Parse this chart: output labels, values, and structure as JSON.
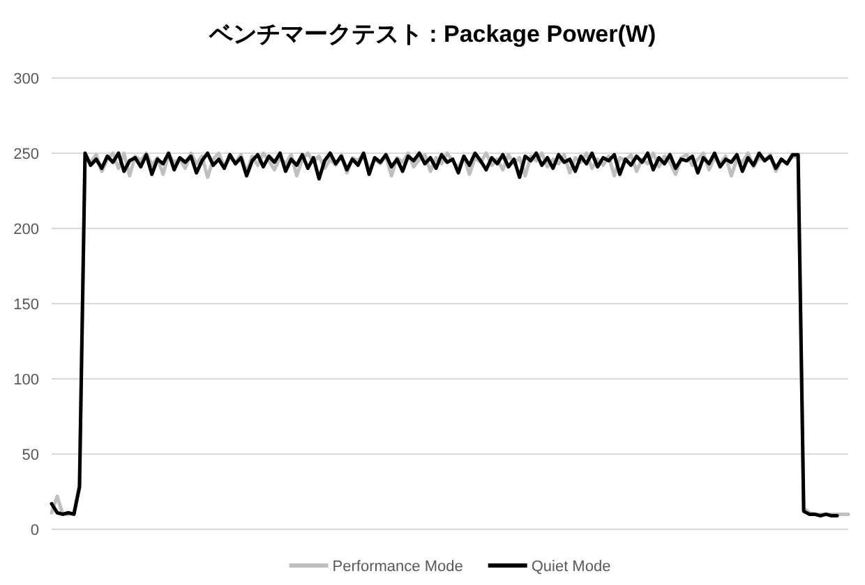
{
  "chart_data": {
    "type": "line",
    "title": "ベンチマークテスト : Package Power(W)",
    "categories": [
      null,
      null,
      null,
      null,
      null,
      null,
      null,
      null,
      null,
      null,
      null,
      null,
      null,
      null,
      null,
      null,
      null,
      null,
      null,
      null,
      null,
      null,
      null,
      null,
      null,
      null,
      null,
      null,
      null,
      null,
      null,
      null,
      null,
      null,
      null,
      null,
      null,
      null,
      null,
      null,
      null,
      null,
      null,
      null,
      null,
      null,
      null,
      null,
      null,
      null,
      null,
      null,
      null,
      null,
      null,
      null,
      null,
      null,
      null,
      null,
      null,
      null,
      null,
      null,
      null,
      null,
      null,
      null,
      null,
      null,
      null,
      null,
      null,
      null,
      null,
      null,
      null,
      null,
      null,
      null,
      null,
      null,
      null,
      null,
      null,
      null,
      null,
      null,
      null,
      null,
      null,
      null,
      null,
      null,
      null,
      null,
      null,
      null,
      null,
      null,
      null,
      null,
      null,
      null,
      null,
      null,
      null,
      null,
      null,
      null,
      null,
      null,
      null,
      null,
      null,
      null,
      null,
      null,
      null,
      null,
      null,
      null,
      null,
      null,
      null,
      null,
      null,
      null,
      null,
      null,
      null,
      null,
      null,
      null,
      null,
      null,
      null,
      null,
      null,
      null,
      null,
      null,
      null,
      null
    ],
    "series": [
      {
        "name": "Performance Mode",
        "color": "#bfbfbf",
        "values": [
          11,
          22,
          10,
          10,
          11,
          30,
          247,
          244,
          249,
          238,
          246,
          250,
          240,
          250,
          235,
          248,
          245,
          250,
          242,
          247,
          236,
          249,
          244,
          246,
          240,
          250,
          243,
          248,
          234,
          246,
          250,
          241,
          247,
          244,
          249,
          237,
          248,
          242,
          250,
          245,
          239,
          247,
          243,
          249,
          235,
          246,
          250,
          244,
          248,
          240,
          246,
          242,
          249,
          237,
          247,
          245,
          250,
          239,
          246,
          243,
          248,
          235,
          247,
          244,
          250,
          241,
          246,
          249,
          238,
          247,
          243,
          250,
          245,
          240,
          248,
          236,
          247,
          244,
          250,
          242,
          246,
          239,
          249,
          243,
          247,
          235,
          248,
          245,
          250,
          241,
          246,
          243,
          249,
          237,
          247,
          244,
          250,
          240,
          246,
          242,
          248,
          235,
          247,
          245,
          249,
          238,
          246,
          243,
          250,
          241,
          248,
          244,
          236,
          247,
          249,
          242,
          246,
          250,
          239,
          247,
          243,
          248,
          235,
          246,
          244,
          250,
          241,
          247,
          245,
          249,
          238,
          246,
          243,
          248,
          247,
          14,
          11,
          10,
          10,
          10,
          10,
          10,
          10,
          10
        ]
      },
      {
        "name": "Quiet Mode",
        "color": "#000000",
        "values": [
          17,
          11,
          10,
          11,
          10,
          28,
          250,
          242,
          246,
          240,
          248,
          244,
          250,
          238,
          245,
          247,
          241,
          249,
          236,
          246,
          243,
          250,
          239,
          247,
          244,
          248,
          237,
          245,
          250,
          242,
          246,
          240,
          249,
          243,
          247,
          235,
          245,
          249,
          241,
          248,
          244,
          250,
          238,
          246,
          242,
          249,
          240,
          247,
          233,
          245,
          250,
          243,
          248,
          239,
          246,
          242,
          250,
          236,
          247,
          244,
          249,
          241,
          246,
          238,
          248,
          245,
          250,
          243,
          247,
          240,
          249,
          244,
          246,
          237,
          248,
          242,
          250,
          245,
          239,
          247,
          243,
          249,
          241,
          246,
          234,
          248,
          245,
          250,
          242,
          247,
          240,
          249,
          244,
          246,
          238,
          248,
          243,
          250,
          241,
          247,
          245,
          249,
          236,
          246,
          242,
          248,
          244,
          250,
          239,
          247,
          243,
          249,
          240,
          246,
          245,
          248,
          237,
          247,
          243,
          250,
          241,
          246,
          244,
          249,
          238,
          247,
          242,
          250,
          245,
          248,
          240,
          246,
          243,
          249,
          249,
          12,
          10,
          10,
          9,
          10,
          9,
          9,
          null,
          null
        ]
      }
    ],
    "ylim": [
      0,
      300
    ],
    "yticks": [
      0,
      50,
      100,
      150,
      200,
      250,
      300
    ],
    "grid": "y",
    "legend": "bottom"
  }
}
